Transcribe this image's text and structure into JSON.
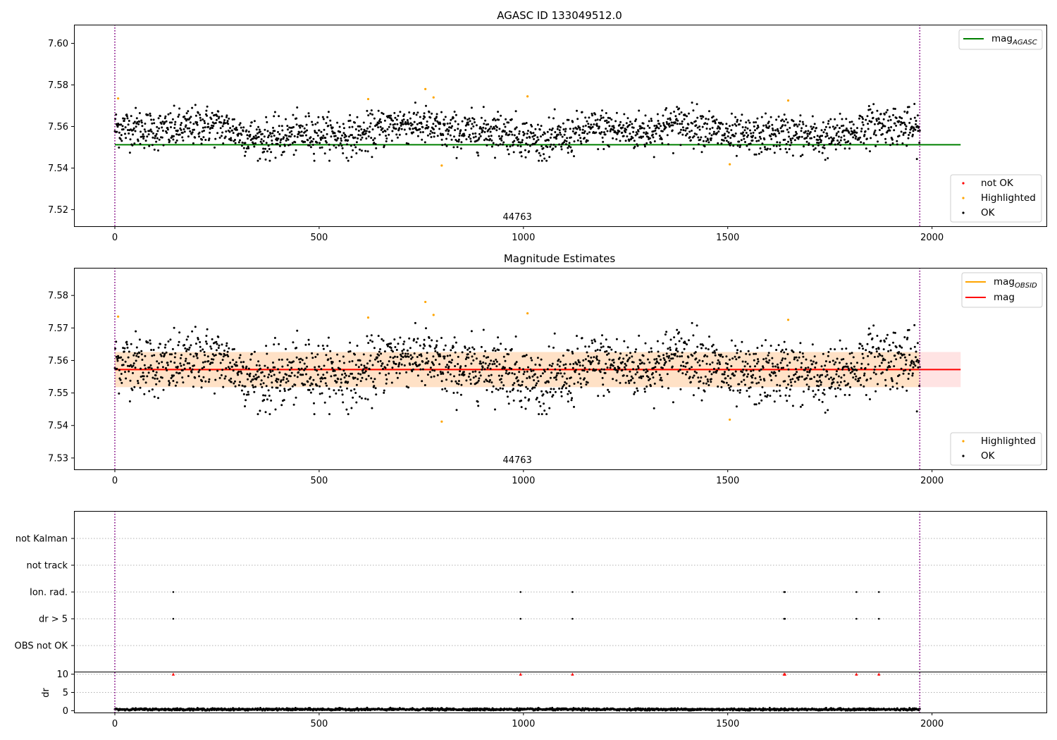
{
  "chart_data": [
    {
      "type": "scatter",
      "title": "AGASC ID 133049512.0",
      "xlim": [
        -100,
        2280
      ],
      "ylim": [
        7.512,
        7.609
      ],
      "x_ticks": [
        0,
        500,
        1000,
        1500,
        2000
      ],
      "y_ticks": [
        7.52,
        7.54,
        7.56,
        7.58,
        7.6
      ],
      "y_tick_labels": [
        "7.52",
        "7.54",
        "7.56",
        "7.58",
        "7.60"
      ],
      "vertical_lines": [
        0,
        1970
      ],
      "obsid_label": {
        "text": "44763",
        "x": 985
      },
      "reference_line": {
        "name": "mag_AGASC",
        "y": 7.5512,
        "x_range": [
          0,
          2070
        ],
        "color": "#008000"
      },
      "scatter_legend": [
        "not OK",
        "Highlighted",
        "OK"
      ],
      "series": [
        {
          "name": "OK",
          "color": "#000000",
          "n_points": 1970,
          "x_range": [
            0,
            1970
          ],
          "mean": 7.5574,
          "std": 0.0055
        },
        {
          "name": "Highlighted",
          "color": "#ffa500",
          "points": [
            [
              8,
              7.5735
            ],
            [
              620,
              7.5732
            ],
            [
              760,
              7.578
            ],
            [
              780,
              7.574
            ],
            [
              800,
              7.5412
            ],
            [
              1010,
              7.5745
            ],
            [
              1505,
              7.5418
            ],
            [
              1648,
              7.5725
            ]
          ]
        }
      ],
      "legend_placement": "top-right / lower-right"
    },
    {
      "type": "scatter",
      "title": "Magnitude Estimates",
      "xlim": [
        -100,
        2280
      ],
      "ylim": [
        7.5265,
        7.5885
      ],
      "x_ticks": [
        0,
        500,
        1000,
        1500,
        2000
      ],
      "y_ticks": [
        7.53,
        7.54,
        7.55,
        7.56,
        7.57,
        7.58
      ],
      "y_tick_labels": [
        "7.53",
        "7.54",
        "7.55",
        "7.56",
        "7.57",
        "7.58"
      ],
      "vertical_lines": [
        0,
        1970
      ],
      "obsid_label": {
        "text": "44763",
        "x": 985
      },
      "lines": [
        {
          "name": "mag_OBSID",
          "color": "#ffa500",
          "y": 7.5572,
          "band": [
            7.5518,
            7.5626
          ],
          "x_range": [
            0,
            1970
          ]
        },
        {
          "name": "mag",
          "color": "#ff0000",
          "y": 7.5572,
          "band": [
            7.5518,
            7.5626
          ],
          "x_range": [
            0,
            2070
          ]
        }
      ],
      "scatter_legend": [
        "Highlighted",
        "OK"
      ],
      "series": [
        {
          "name": "OK",
          "color": "#000000",
          "n_points": 1970,
          "x_range": [
            0,
            1970
          ],
          "mean": 7.5574,
          "std": 0.0055
        },
        {
          "name": "Highlighted",
          "color": "#ffa500",
          "points": [
            [
              8,
              7.5735
            ],
            [
              620,
              7.5732
            ],
            [
              760,
              7.578
            ],
            [
              780,
              7.574
            ],
            [
              800,
              7.5412
            ],
            [
              1010,
              7.5745
            ],
            [
              1505,
              7.5418
            ],
            [
              1648,
              7.5725
            ]
          ]
        }
      ],
      "legend_placement": "top-right / lower-right"
    },
    {
      "type": "scatter",
      "title": "",
      "xlim": [
        -100,
        2280
      ],
      "categories": [
        "not Kalman",
        "not track",
        "Ion. rad.",
        "dr > 5",
        "OBS not OK"
      ],
      "vertical_lines": [
        0,
        1970
      ],
      "flag_points": {
        "Ion. rad.": [
          143,
          993,
          1120,
          1638,
          1640,
          1815,
          1870
        ],
        "dr > 5": [
          143,
          993,
          1120,
          1638,
          1640,
          1815,
          1870
        ]
      }
    },
    {
      "type": "scatter",
      "title": "",
      "ylabel": "dr",
      "xlim": [
        -100,
        2280
      ],
      "ylim": [
        -0.5,
        10.5
      ],
      "x_ticks": [
        0,
        500,
        1000,
        1500,
        2000
      ],
      "y_ticks": [
        0,
        5,
        10
      ],
      "y_tick_labels": [
        "0",
        "5",
        "10"
      ],
      "vertical_lines": [
        0,
        1970
      ],
      "clipped_markers": {
        "color": "#ff0000",
        "y": 10,
        "x": [
          143,
          993,
          1120,
          1638,
          1640,
          1815,
          1870
        ]
      },
      "series": [
        {
          "name": "dr",
          "color": "#000000",
          "n_points": 1970,
          "x_range": [
            0,
            1970
          ],
          "mean": 0.35,
          "std": 0.15
        }
      ]
    }
  ],
  "colors": {
    "ok": "#000000",
    "highlighted": "#ffa500",
    "not_ok": "#ff0000",
    "agasc_line": "#008000",
    "mag_line": "#ff0000",
    "obsid_line": "#ffa500",
    "vline": "#800080",
    "band_mag": "#ffcccc",
    "band_obsid": "#ffe0b3"
  }
}
